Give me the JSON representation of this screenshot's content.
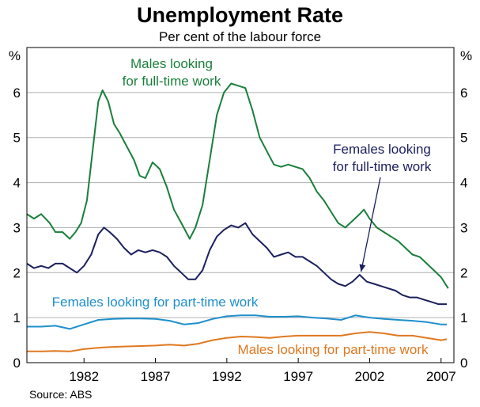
{
  "chart_data": {
    "type": "line",
    "title": "Unemployment Rate",
    "subtitle": "Per cent of the labour force",
    "source": "Source: ABS",
    "ylabel_left": "%",
    "ylabel_right": "%",
    "ylim": [
      0,
      7
    ],
    "yticks": [
      "0",
      "1",
      "2",
      "3",
      "4",
      "5",
      "6"
    ],
    "xlim": [
      1978.0,
      2007.9
    ],
    "xticks": [
      {
        "label": "1982",
        "year": 1982.0
      },
      {
        "label": "1987",
        "year": 1987.0
      },
      {
        "label": "1992",
        "year": 1992.0
      },
      {
        "label": "1997",
        "year": 1997.0
      },
      {
        "label": "2002",
        "year": 2002.0
      },
      {
        "label": "2007",
        "year": 2007.0
      }
    ],
    "grid": true,
    "legend": "inline labels",
    "series": [
      {
        "name": "Males looking for full-time work",
        "label_lines": [
          "Males looking",
          "for full-time work"
        ],
        "color": "#1a7f3c",
        "points": [
          [
            1978.0,
            3.3
          ],
          [
            1978.5,
            3.2
          ],
          [
            1979.0,
            3.3
          ],
          [
            1979.6,
            3.1
          ],
          [
            1980.0,
            2.9
          ],
          [
            1980.5,
            2.9
          ],
          [
            1981.0,
            2.75
          ],
          [
            1981.4,
            2.9
          ],
          [
            1981.8,
            3.1
          ],
          [
            1982.2,
            3.6
          ],
          [
            1982.6,
            4.7
          ],
          [
            1983.0,
            5.8
          ],
          [
            1983.3,
            6.05
          ],
          [
            1983.7,
            5.8
          ],
          [
            1984.1,
            5.3
          ],
          [
            1984.5,
            5.1
          ],
          [
            1985.0,
            4.8
          ],
          [
            1985.5,
            4.5
          ],
          [
            1985.9,
            4.15
          ],
          [
            1986.3,
            4.1
          ],
          [
            1986.8,
            4.45
          ],
          [
            1987.3,
            4.3
          ],
          [
            1987.8,
            3.9
          ],
          [
            1988.3,
            3.4
          ],
          [
            1988.9,
            3.05
          ],
          [
            1989.4,
            2.75
          ],
          [
            1989.8,
            3.0
          ],
          [
            1990.3,
            3.5
          ],
          [
            1990.8,
            4.5
          ],
          [
            1991.3,
            5.5
          ],
          [
            1991.8,
            6.0
          ],
          [
            1992.3,
            6.2
          ],
          [
            1992.8,
            6.15
          ],
          [
            1993.3,
            6.1
          ],
          [
            1993.8,
            5.6
          ],
          [
            1994.3,
            5.0
          ],
          [
            1994.8,
            4.7
          ],
          [
            1995.3,
            4.4
          ],
          [
            1995.8,
            4.35
          ],
          [
            1996.3,
            4.4
          ],
          [
            1996.8,
            4.35
          ],
          [
            1997.3,
            4.3
          ],
          [
            1997.8,
            4.1
          ],
          [
            1998.3,
            3.8
          ],
          [
            1998.8,
            3.6
          ],
          [
            1999.3,
            3.35
          ],
          [
            1999.8,
            3.1
          ],
          [
            2000.3,
            3.0
          ],
          [
            2000.8,
            3.15
          ],
          [
            2001.3,
            3.3
          ],
          [
            2001.6,
            3.4
          ],
          [
            2002.0,
            3.2
          ],
          [
            2002.5,
            3.0
          ],
          [
            2003.0,
            2.9
          ],
          [
            2003.5,
            2.8
          ],
          [
            2004.0,
            2.7
          ],
          [
            2004.5,
            2.55
          ],
          [
            2005.0,
            2.4
          ],
          [
            2005.5,
            2.35
          ],
          [
            2006.0,
            2.2
          ],
          [
            2006.5,
            2.05
          ],
          [
            2007.0,
            1.9
          ],
          [
            2007.5,
            1.65
          ]
        ]
      },
      {
        "name": "Females looking for full-time work",
        "label_lines": [
          "Females looking",
          "for full-time work"
        ],
        "color": "#1b1f5e",
        "points": [
          [
            1978.0,
            2.2
          ],
          [
            1978.5,
            2.1
          ],
          [
            1979.0,
            2.15
          ],
          [
            1979.5,
            2.1
          ],
          [
            1980.0,
            2.2
          ],
          [
            1980.5,
            2.2
          ],
          [
            1981.0,
            2.1
          ],
          [
            1981.5,
            2.0
          ],
          [
            1982.0,
            2.15
          ],
          [
            1982.5,
            2.4
          ],
          [
            1983.0,
            2.85
          ],
          [
            1983.4,
            3.0
          ],
          [
            1983.8,
            2.9
          ],
          [
            1984.3,
            2.75
          ],
          [
            1984.8,
            2.55
          ],
          [
            1985.3,
            2.4
          ],
          [
            1985.8,
            2.5
          ],
          [
            1986.3,
            2.45
          ],
          [
            1986.8,
            2.5
          ],
          [
            1987.3,
            2.45
          ],
          [
            1987.8,
            2.35
          ],
          [
            1988.3,
            2.15
          ],
          [
            1988.8,
            2.0
          ],
          [
            1989.3,
            1.85
          ],
          [
            1989.8,
            1.85
          ],
          [
            1990.3,
            2.05
          ],
          [
            1990.8,
            2.5
          ],
          [
            1991.3,
            2.8
          ],
          [
            1991.8,
            2.95
          ],
          [
            1992.3,
            3.05
          ],
          [
            1992.8,
            3.0
          ],
          [
            1993.3,
            3.1
          ],
          [
            1993.8,
            2.85
          ],
          [
            1994.3,
            2.7
          ],
          [
            1994.8,
            2.55
          ],
          [
            1995.3,
            2.35
          ],
          [
            1995.8,
            2.4
          ],
          [
            1996.3,
            2.45
          ],
          [
            1996.8,
            2.35
          ],
          [
            1997.3,
            2.35
          ],
          [
            1997.8,
            2.25
          ],
          [
            1998.3,
            2.15
          ],
          [
            1998.8,
            2.0
          ],
          [
            1999.3,
            1.85
          ],
          [
            1999.8,
            1.75
          ],
          [
            2000.3,
            1.7
          ],
          [
            2000.8,
            1.8
          ],
          [
            2001.3,
            1.95
          ],
          [
            2001.8,
            1.8
          ],
          [
            2002.3,
            1.75
          ],
          [
            2002.8,
            1.7
          ],
          [
            2003.3,
            1.65
          ],
          [
            2003.8,
            1.6
          ],
          [
            2004.3,
            1.5
          ],
          [
            2004.8,
            1.45
          ],
          [
            2005.3,
            1.45
          ],
          [
            2005.8,
            1.4
          ],
          [
            2006.3,
            1.35
          ],
          [
            2006.8,
            1.3
          ],
          [
            2007.4,
            1.3
          ]
        ]
      },
      {
        "name": "Females looking for part-time work",
        "label_lines": [
          "Females looking for part-time work"
        ],
        "color": "#1e8fcc",
        "points": [
          [
            1978.0,
            0.8
          ],
          [
            1979.0,
            0.8
          ],
          [
            1980.0,
            0.82
          ],
          [
            1981.0,
            0.75
          ],
          [
            1982.0,
            0.85
          ],
          [
            1983.0,
            0.95
          ],
          [
            1984.0,
            0.97
          ],
          [
            1985.0,
            0.98
          ],
          [
            1986.0,
            0.98
          ],
          [
            1987.0,
            0.97
          ],
          [
            1988.0,
            0.93
          ],
          [
            1989.0,
            0.85
          ],
          [
            1990.0,
            0.88
          ],
          [
            1991.0,
            0.97
          ],
          [
            1992.0,
            1.03
          ],
          [
            1993.0,
            1.05
          ],
          [
            1994.0,
            1.05
          ],
          [
            1995.0,
            1.02
          ],
          [
            1996.0,
            1.02
          ],
          [
            1997.0,
            1.03
          ],
          [
            1998.0,
            1.0
          ],
          [
            1999.0,
            0.98
          ],
          [
            2000.0,
            0.95
          ],
          [
            2001.0,
            1.05
          ],
          [
            2002.0,
            1.0
          ],
          [
            2003.0,
            0.97
          ],
          [
            2004.0,
            0.95
          ],
          [
            2005.0,
            0.93
          ],
          [
            2006.0,
            0.9
          ],
          [
            2007.0,
            0.85
          ],
          [
            2007.4,
            0.85
          ]
        ]
      },
      {
        "name": "Males looking for part-time work",
        "label_lines": [
          "Males looking for part-time work"
        ],
        "color": "#e07820",
        "points": [
          [
            1978.0,
            0.25
          ],
          [
            1979.0,
            0.25
          ],
          [
            1980.0,
            0.26
          ],
          [
            1981.0,
            0.25
          ],
          [
            1982.0,
            0.3
          ],
          [
            1983.0,
            0.33
          ],
          [
            1984.0,
            0.35
          ],
          [
            1985.0,
            0.36
          ],
          [
            1986.0,
            0.37
          ],
          [
            1987.0,
            0.38
          ],
          [
            1988.0,
            0.4
          ],
          [
            1989.0,
            0.38
          ],
          [
            1990.0,
            0.42
          ],
          [
            1991.0,
            0.5
          ],
          [
            1992.0,
            0.55
          ],
          [
            1993.0,
            0.58
          ],
          [
            1994.0,
            0.57
          ],
          [
            1995.0,
            0.55
          ],
          [
            1996.0,
            0.58
          ],
          [
            1997.0,
            0.6
          ],
          [
            1998.0,
            0.6
          ],
          [
            1999.0,
            0.6
          ],
          [
            2000.0,
            0.6
          ],
          [
            2001.0,
            0.65
          ],
          [
            2002.0,
            0.68
          ],
          [
            2003.0,
            0.65
          ],
          [
            2004.0,
            0.6
          ],
          [
            2005.0,
            0.6
          ],
          [
            2006.0,
            0.55
          ],
          [
            2007.0,
            0.5
          ],
          [
            2007.4,
            0.52
          ]
        ]
      }
    ],
    "annotations": [
      {
        "text": "Females looking for full-time work",
        "points_to_year": 2001.4,
        "points_to_value": 1.95
      }
    ]
  }
}
